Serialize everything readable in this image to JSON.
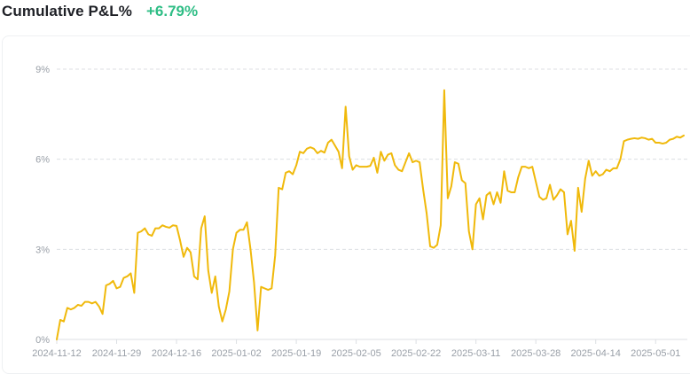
{
  "header": {
    "title": "Cumulative P&L%",
    "value": "+6.79%"
  },
  "colors": {
    "line": "#f0b90b",
    "positive": "#2ebd85",
    "grid": "#dcdfe3",
    "tick": "#9aa0a8"
  },
  "chart_data": {
    "type": "line",
    "title": "Cumulative P&L%",
    "xlabel": "",
    "ylabel": "",
    "ylim": [
      0,
      9
    ],
    "grid": true,
    "y_ticks": [
      {
        "value": 0,
        "label": "0%"
      },
      {
        "value": 3,
        "label": "3%"
      },
      {
        "value": 6,
        "label": "6%"
      },
      {
        "value": 9,
        "label": "9%"
      }
    ],
    "x_ticks": [
      {
        "index": 0,
        "label": "2024-11-12"
      },
      {
        "index": 17,
        "label": "2024-11-29"
      },
      {
        "index": 34,
        "label": "2024-12-16"
      },
      {
        "index": 51,
        "label": "2025-01-02"
      },
      {
        "index": 68,
        "label": "2025-01-19"
      },
      {
        "index": 85,
        "label": "2025-02-05"
      },
      {
        "index": 102,
        "label": "2025-02-22"
      },
      {
        "index": 119,
        "label": "2025-03-11"
      },
      {
        "index": 136,
        "label": "2025-03-28"
      },
      {
        "index": 153,
        "label": "2025-04-14"
      },
      {
        "index": 170,
        "label": "2025-05-01"
      }
    ],
    "x_start": "2024-11-12",
    "x_end": "2025-05-10",
    "series": [
      {
        "values": [
          0.0,
          0.65,
          0.6,
          1.05,
          1.0,
          1.05,
          1.15,
          1.12,
          1.25,
          1.25,
          1.2,
          1.25,
          1.1,
          0.85,
          1.8,
          1.85,
          1.95,
          1.7,
          1.75,
          2.05,
          2.1,
          2.2,
          1.55,
          3.55,
          3.6,
          3.7,
          3.5,
          3.45,
          3.7,
          3.7,
          3.8,
          3.75,
          3.72,
          3.8,
          3.78,
          3.3,
          2.75,
          3.05,
          2.9,
          2.1,
          2.0,
          3.7,
          4.1,
          2.3,
          1.55,
          2.1,
          1.1,
          0.6,
          1.0,
          1.6,
          3.0,
          3.55,
          3.65,
          3.65,
          3.9,
          3.0,
          1.9,
          0.3,
          1.75,
          1.7,
          1.65,
          1.7,
          2.8,
          5.05,
          5.0,
          5.55,
          5.6,
          5.5,
          5.8,
          6.25,
          6.2,
          6.35,
          6.4,
          6.35,
          6.2,
          6.28,
          6.22,
          6.55,
          6.65,
          6.45,
          6.25,
          5.7,
          7.75,
          6.1,
          5.65,
          5.8,
          5.75,
          5.75,
          5.75,
          5.78,
          6.05,
          5.55,
          6.25,
          5.95,
          6.15,
          6.2,
          5.8,
          5.65,
          5.6,
          5.9,
          6.2,
          5.9,
          5.95,
          5.9,
          5.0,
          4.2,
          3.1,
          3.05,
          3.15,
          3.8,
          8.3,
          4.7,
          5.1,
          5.9,
          5.85,
          5.3,
          5.2,
          3.6,
          3.0,
          4.5,
          4.7,
          4.0,
          4.8,
          4.9,
          4.5,
          4.9,
          4.55,
          5.6,
          4.95,
          4.9,
          4.9,
          5.4,
          5.75,
          5.75,
          5.7,
          5.75,
          5.25,
          4.75,
          4.65,
          4.7,
          5.15,
          4.65,
          4.8,
          5.0,
          4.9,
          3.5,
          3.95,
          2.95,
          5.05,
          4.25,
          5.35,
          5.95,
          5.45,
          5.6,
          5.45,
          5.5,
          5.65,
          5.6,
          5.7,
          5.7,
          6.0,
          6.6,
          6.65,
          6.68,
          6.7,
          6.68,
          6.72,
          6.7,
          6.65,
          6.68,
          6.55,
          6.55,
          6.52,
          6.55,
          6.65,
          6.68,
          6.75,
          6.72,
          6.79
        ]
      }
    ]
  }
}
